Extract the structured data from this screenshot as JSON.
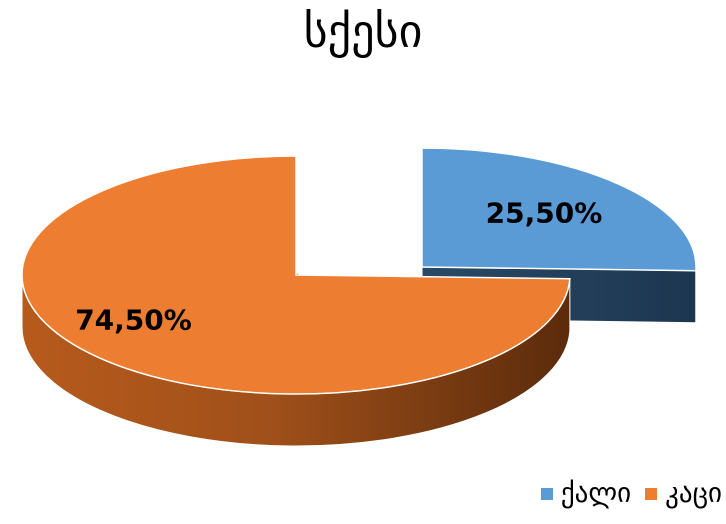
{
  "chart_data": {
    "type": "pie",
    "title": "სქესი",
    "categories": [
      "ქალი",
      "კაცი"
    ],
    "values": [
      25.5,
      74.5
    ],
    "data_labels": [
      "25,50%",
      "74,50%"
    ],
    "colors": [
      "#5B9BD5",
      "#ED7D31"
    ],
    "exploded": "ქალი",
    "three_d": true,
    "legend_position": "bottom-right"
  }
}
